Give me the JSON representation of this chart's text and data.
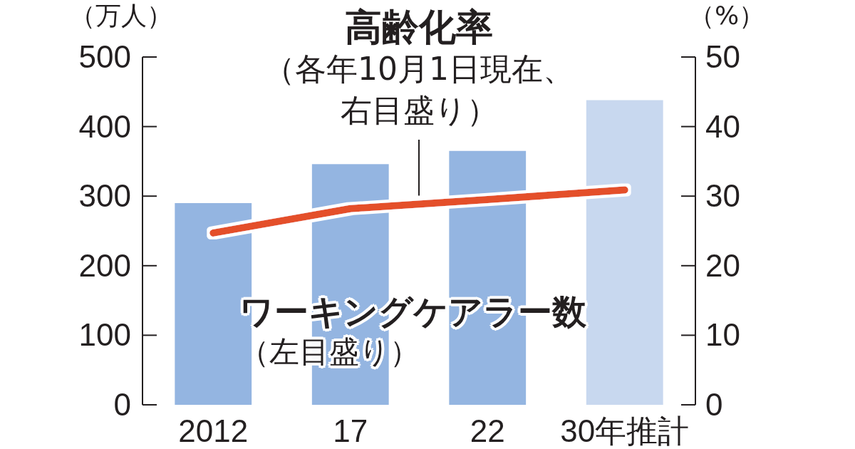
{
  "chart_data": {
    "type": "bar",
    "categories": [
      "2012",
      "17",
      "22",
      "30年推計"
    ],
    "ylabel": "（万人）",
    "y2label": "（%）",
    "ylim": [
      0,
      500
    ],
    "yticks": [
      0,
      100,
      200,
      300,
      400,
      500
    ],
    "y2lim": [
      0,
      50
    ],
    "y2ticks": [
      0,
      10,
      20,
      30,
      40,
      50
    ],
    "series": [
      {
        "name": "**ワーキングケアラー数**（左目盛り）",
        "type": "bar",
        "values": [
          290,
          346,
          365,
          438
        ],
        "colors": [
          "#94b5e1",
          "#94b5e1",
          "#94b5e1",
          "#c8d8ef"
        ]
      },
      {
        "name": "**高齢化率**（各年10月1日現在、右目盛り）",
        "type": "line",
        "axis": "y2",
        "color": "#e4502a",
        "values": [
          24.7,
          28.2,
          29.5,
          30.9
        ]
      }
    ]
  }
}
